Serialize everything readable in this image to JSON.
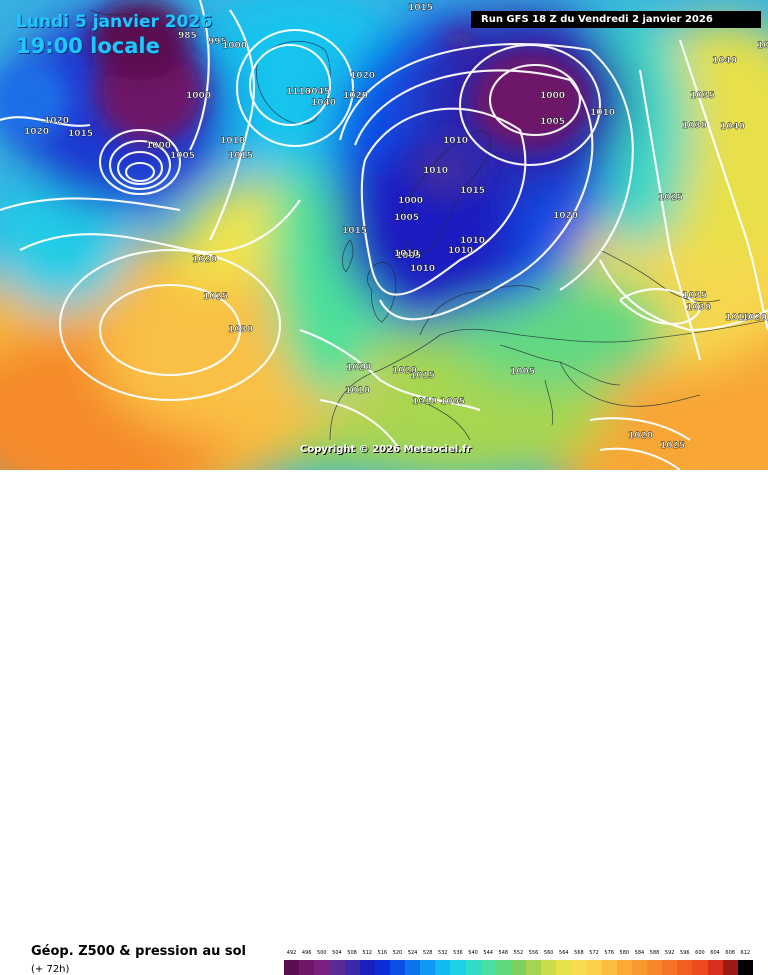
{
  "header": {
    "date_line_1": "Lundi 5 janvier 2026",
    "date_line_2": "19:00 locale",
    "run": "Run GFS 18 Z du Vendredi 2 janvier 2026"
  },
  "copyright": "Copyright © 2026 Meteociel.fr",
  "footer": {
    "title": "Géop. Z500 & pression au sol",
    "subtitle": "(+ 72h)"
  },
  "colors": {
    "background_fill": "#39b2e0"
  },
  "legend": {
    "values": [
      "492",
      "496",
      "500",
      "504",
      "508",
      "512",
      "516",
      "520",
      "524",
      "528",
      "532",
      "536",
      "540",
      "544",
      "548",
      "552",
      "556",
      "560",
      "564",
      "568",
      "572",
      "576",
      "580",
      "584",
      "588",
      "592",
      "596",
      "600",
      "604",
      "608",
      "612"
    ],
    "colors": [
      "#5a0f50",
      "#6e1768",
      "#7d1f80",
      "#5c2a94",
      "#3a2aa6",
      "#1a1fc0",
      "#0a2ed8",
      "#0b50e6",
      "#0e74ee",
      "#1098f2",
      "#14b8f0",
      "#1ed0e6",
      "#30dcc8",
      "#48e0a0",
      "#5ed87a",
      "#7cd05e",
      "#a4d450",
      "#cadc4a",
      "#e6e24a",
      "#f6dc4e",
      "#fad048",
      "#fbbd3e",
      "#fbaa36",
      "#fa9830",
      "#f8862a",
      "#f57226",
      "#f25e22",
      "#ee4a20",
      "#d8301e",
      "#9a1a16",
      "#000000"
    ]
  },
  "isobar_labels": [
    "985",
    "995",
    "1000",
    "1000",
    "1000",
    "1000",
    "1005",
    "1010",
    "1015",
    "1020",
    "1020",
    "1015",
    "1020",
    "1045",
    "1040",
    "1020",
    "1020",
    "1110",
    "1000",
    "1005",
    "1010",
    "1010",
    "1015",
    "1010",
    "1010",
    "1005",
    "1005",
    "1010",
    "1010",
    "1015",
    "1015",
    "1020",
    "1010",
    "1045",
    "1040",
    "1035",
    "1030",
    "1040",
    "1025",
    "1035",
    "1030",
    "1025",
    "1020",
    "1025",
    "1030",
    "1020",
    "1015",
    "1005",
    "1010",
    "1005",
    "1020",
    "1020",
    "1010",
    "1010"
  ]
}
